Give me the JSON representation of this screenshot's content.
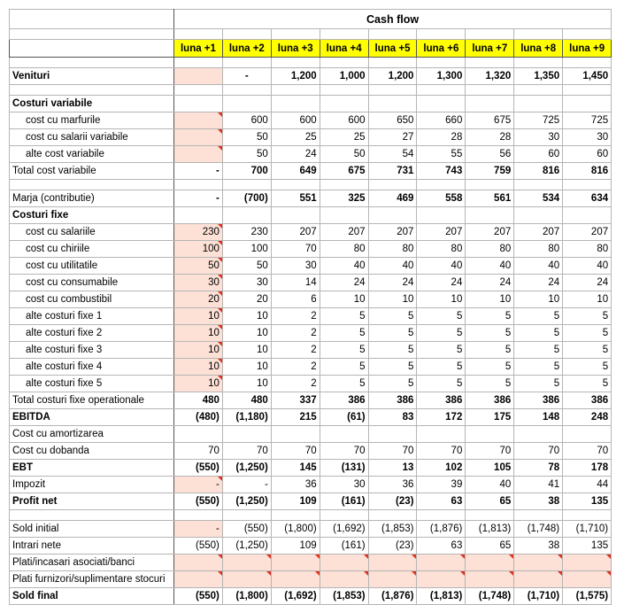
{
  "title": "Cash flow",
  "columns": [
    "luna +1",
    "luna +2",
    "luna +3",
    "luna +4",
    "luna +5",
    "luna +6",
    "luna +7",
    "luna +8",
    "luna +9"
  ],
  "rows": [
    {
      "label": "Venituri",
      "values": [
        null,
        "-",
        "1,200",
        "1,000",
        "1,200",
        "1,300",
        "1,320",
        "1,350",
        "1,450"
      ]
    },
    {
      "label": "Costuri variabile"
    },
    {
      "label": "cost cu marfurile",
      "values": [
        null,
        "600",
        "600",
        "600",
        "650",
        "660",
        "675",
        "725",
        "725"
      ]
    },
    {
      "label": "cost cu salarii variabile",
      "values": [
        null,
        "50",
        "25",
        "25",
        "27",
        "28",
        "28",
        "30",
        "30"
      ]
    },
    {
      "label": "alte cost variabile",
      "values": [
        null,
        "50",
        "24",
        "50",
        "54",
        "55",
        "56",
        "60",
        "60"
      ]
    },
    {
      "label": "Total cost variabile",
      "values": [
        "-",
        "700",
        "649",
        "675",
        "731",
        "743",
        "759",
        "816",
        "816"
      ]
    },
    {
      "label": "Marja (contributie)",
      "values": [
        "-",
        "(700)",
        "551",
        "325",
        "469",
        "558",
        "561",
        "534",
        "634"
      ]
    },
    {
      "label": "Costuri fixe"
    },
    {
      "label": "cost cu salariile",
      "values": [
        "230",
        "230",
        "207",
        "207",
        "207",
        "207",
        "207",
        "207",
        "207"
      ]
    },
    {
      "label": "cost cu chiriile",
      "values": [
        "100",
        "100",
        "70",
        "80",
        "80",
        "80",
        "80",
        "80",
        "80"
      ]
    },
    {
      "label": "cost cu utilitatile",
      "values": [
        "50",
        "50",
        "30",
        "40",
        "40",
        "40",
        "40",
        "40",
        "40"
      ]
    },
    {
      "label": "cost cu consumabile",
      "values": [
        "30",
        "30",
        "14",
        "24",
        "24",
        "24",
        "24",
        "24",
        "24"
      ]
    },
    {
      "label": "cost cu combustibil",
      "values": [
        "20",
        "20",
        "6",
        "10",
        "10",
        "10",
        "10",
        "10",
        "10"
      ]
    },
    {
      "label": "alte costuri fixe 1",
      "values": [
        "10",
        "10",
        "2",
        "5",
        "5",
        "5",
        "5",
        "5",
        "5"
      ]
    },
    {
      "label": "alte costuri fixe 2",
      "values": [
        "10",
        "10",
        "2",
        "5",
        "5",
        "5",
        "5",
        "5",
        "5"
      ]
    },
    {
      "label": "alte costuri fixe 3",
      "values": [
        "10",
        "10",
        "2",
        "5",
        "5",
        "5",
        "5",
        "5",
        "5"
      ]
    },
    {
      "label": "alte costuri fixe 4",
      "values": [
        "10",
        "10",
        "2",
        "5",
        "5",
        "5",
        "5",
        "5",
        "5"
      ]
    },
    {
      "label": "alte costuri fixe 5",
      "values": [
        "10",
        "10",
        "2",
        "5",
        "5",
        "5",
        "5",
        "5",
        "5"
      ]
    },
    {
      "label": "Total costuri fixe operationale",
      "values": [
        "480",
        "480",
        "337",
        "386",
        "386",
        "386",
        "386",
        "386",
        "386"
      ]
    },
    {
      "label": "EBITDA",
      "values": [
        "(480)",
        "(1,180)",
        "215",
        "(61)",
        "83",
        "172",
        "175",
        "148",
        "248"
      ]
    },
    {
      "label": "Cost cu amortizarea"
    },
    {
      "label": "Cost cu dobanda",
      "values": [
        "70",
        "70",
        "70",
        "70",
        "70",
        "70",
        "70",
        "70",
        "70"
      ]
    },
    {
      "label": "EBT",
      "values": [
        "(550)",
        "(1,250)",
        "145",
        "(131)",
        "13",
        "102",
        "105",
        "78",
        "178"
      ]
    },
    {
      "label": "Impozit",
      "values": [
        "-",
        "-",
        "36",
        "30",
        "36",
        "39",
        "40",
        "41",
        "44"
      ]
    },
    {
      "label": "Profit net",
      "values": [
        "(550)",
        "(1,250)",
        "109",
        "(161)",
        "(23)",
        "63",
        "65",
        "38",
        "135"
      ]
    },
    {
      "label": "Sold initial",
      "values": [
        "-",
        "(550)",
        "(1,800)",
        "(1,692)",
        "(1,853)",
        "(1,876)",
        "(1,813)",
        "(1,748)",
        "(1,710)"
      ]
    },
    {
      "label": "Intrari nete",
      "values": [
        "(550)",
        "(1,250)",
        "109",
        "(161)",
        "(23)",
        "63",
        "65",
        "38",
        "135"
      ]
    },
    {
      "label": "Plati/incasari asociati/banci"
    },
    {
      "label": "Plati furnizori/suplimentare stocuri"
    },
    {
      "label": "Sold final",
      "values": [
        "(550)",
        "(1,800)",
        "(1,692)",
        "(1,853)",
        "(1,876)",
        "(1,813)",
        "(1,748)",
        "(1,710)",
        "(1,575)"
      ]
    }
  ]
}
